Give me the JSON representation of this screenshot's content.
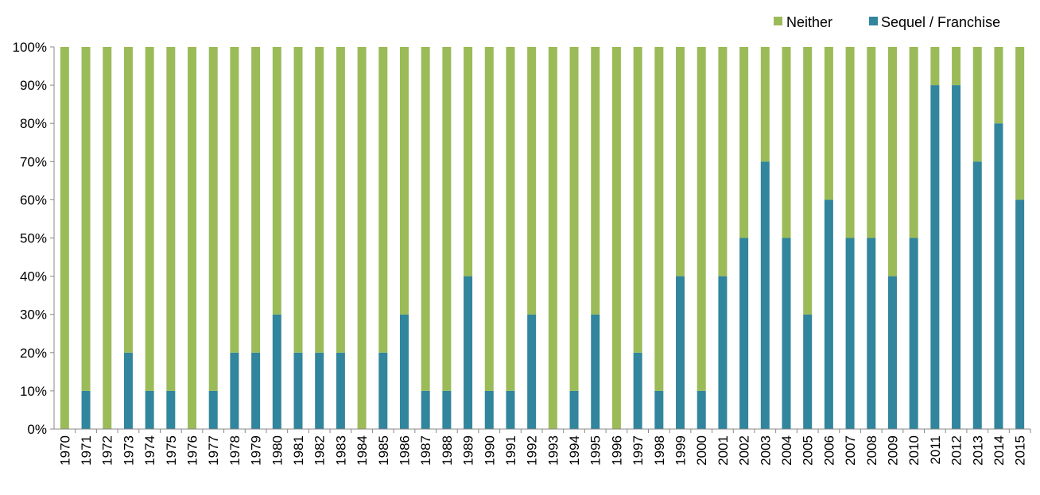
{
  "chart_data": {
    "type": "bar",
    "stacked": true,
    "percent": true,
    "title": "",
    "xlabel": "",
    "ylabel": "",
    "ylim": [
      0,
      100
    ],
    "yticks": [
      "0%",
      "10%",
      "20%",
      "30%",
      "40%",
      "50%",
      "60%",
      "70%",
      "80%",
      "90%",
      "100%"
    ],
    "legend_position": "top-right",
    "categories": [
      "1970",
      "1971",
      "1972",
      "1973",
      "1974",
      "1975",
      "1976",
      "1977",
      "1978",
      "1979",
      "1980",
      "1981",
      "1982",
      "1983",
      "1984",
      "1985",
      "1986",
      "1987",
      "1988",
      "1989",
      "1990",
      "1991",
      "1992",
      "1993",
      "1994",
      "1995",
      "1996",
      "1997",
      "1998",
      "1999",
      "2000",
      "2001",
      "2002",
      "2003",
      "2004",
      "2005",
      "2006",
      "2007",
      "2008",
      "2009",
      "2010",
      "2011",
      "2012",
      "2013",
      "2014",
      "2015"
    ],
    "series": [
      {
        "name": "Sequel / Franchise",
        "color": "#31859C",
        "values": [
          0,
          10,
          0,
          20,
          10,
          10,
          0,
          10,
          20,
          20,
          30,
          20,
          20,
          20,
          0,
          20,
          30,
          10,
          10,
          40,
          10,
          10,
          30,
          0,
          10,
          30,
          0,
          20,
          10,
          40,
          10,
          40,
          50,
          70,
          50,
          30,
          60,
          50,
          50,
          40,
          50,
          90,
          90,
          70,
          80,
          60
        ]
      },
      {
        "name": "Neither",
        "color": "#9BBB59",
        "values": [
          100,
          90,
          100,
          80,
          90,
          90,
          100,
          90,
          80,
          80,
          70,
          80,
          80,
          80,
          100,
          80,
          70,
          90,
          90,
          60,
          90,
          90,
          70,
          100,
          90,
          70,
          100,
          80,
          90,
          60,
          90,
          60,
          50,
          30,
          50,
          70,
          40,
          50,
          50,
          60,
          50,
          10,
          10,
          30,
          20,
          40
        ]
      }
    ],
    "legend": [
      "Neither",
      "Sequel / Franchise"
    ]
  }
}
